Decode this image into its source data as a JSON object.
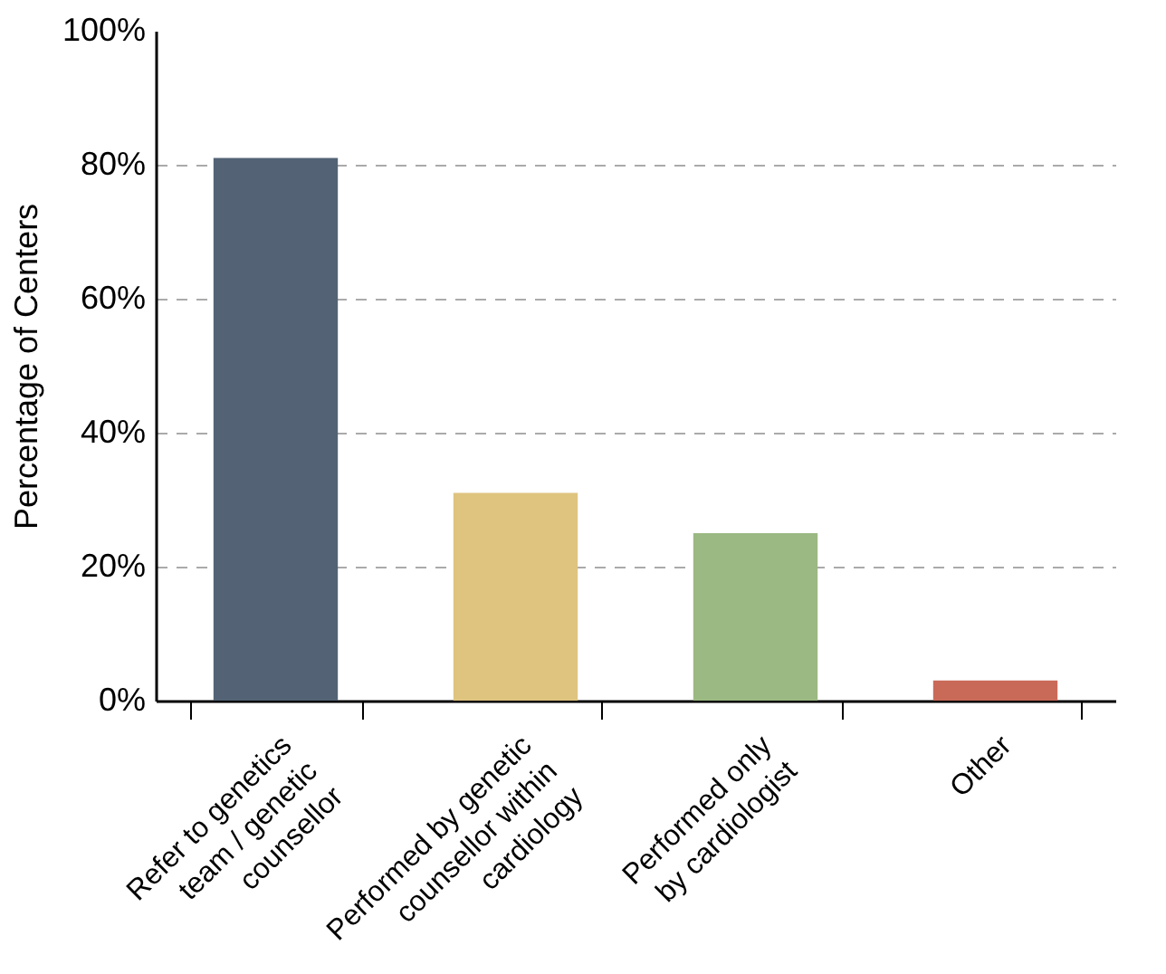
{
  "chart_data": {
    "type": "bar",
    "ylabel": "Percentage of Centers",
    "categories": [
      "Refer to genetics\nteam / genetic\ncounsellor",
      "Performed by genetic\ncounsellor within\ncardiology",
      "Performed only\nby cardiologist",
      "Other"
    ],
    "values": [
      81,
      31,
      25,
      3
    ],
    "colors": [
      "#536375",
      "#dfc480",
      "#9bb982",
      "#c96a58"
    ],
    "ylim": [
      0,
      100
    ],
    "yticks": [
      {
        "value": 0,
        "label": "0%"
      },
      {
        "value": 20,
        "label": "20%"
      },
      {
        "value": 40,
        "label": "40%"
      },
      {
        "value": 60,
        "label": "60%"
      },
      {
        "value": 80,
        "label": "80%"
      },
      {
        "value": 100,
        "label": "100%"
      }
    ],
    "grid": "y",
    "line_style": "dashed"
  }
}
